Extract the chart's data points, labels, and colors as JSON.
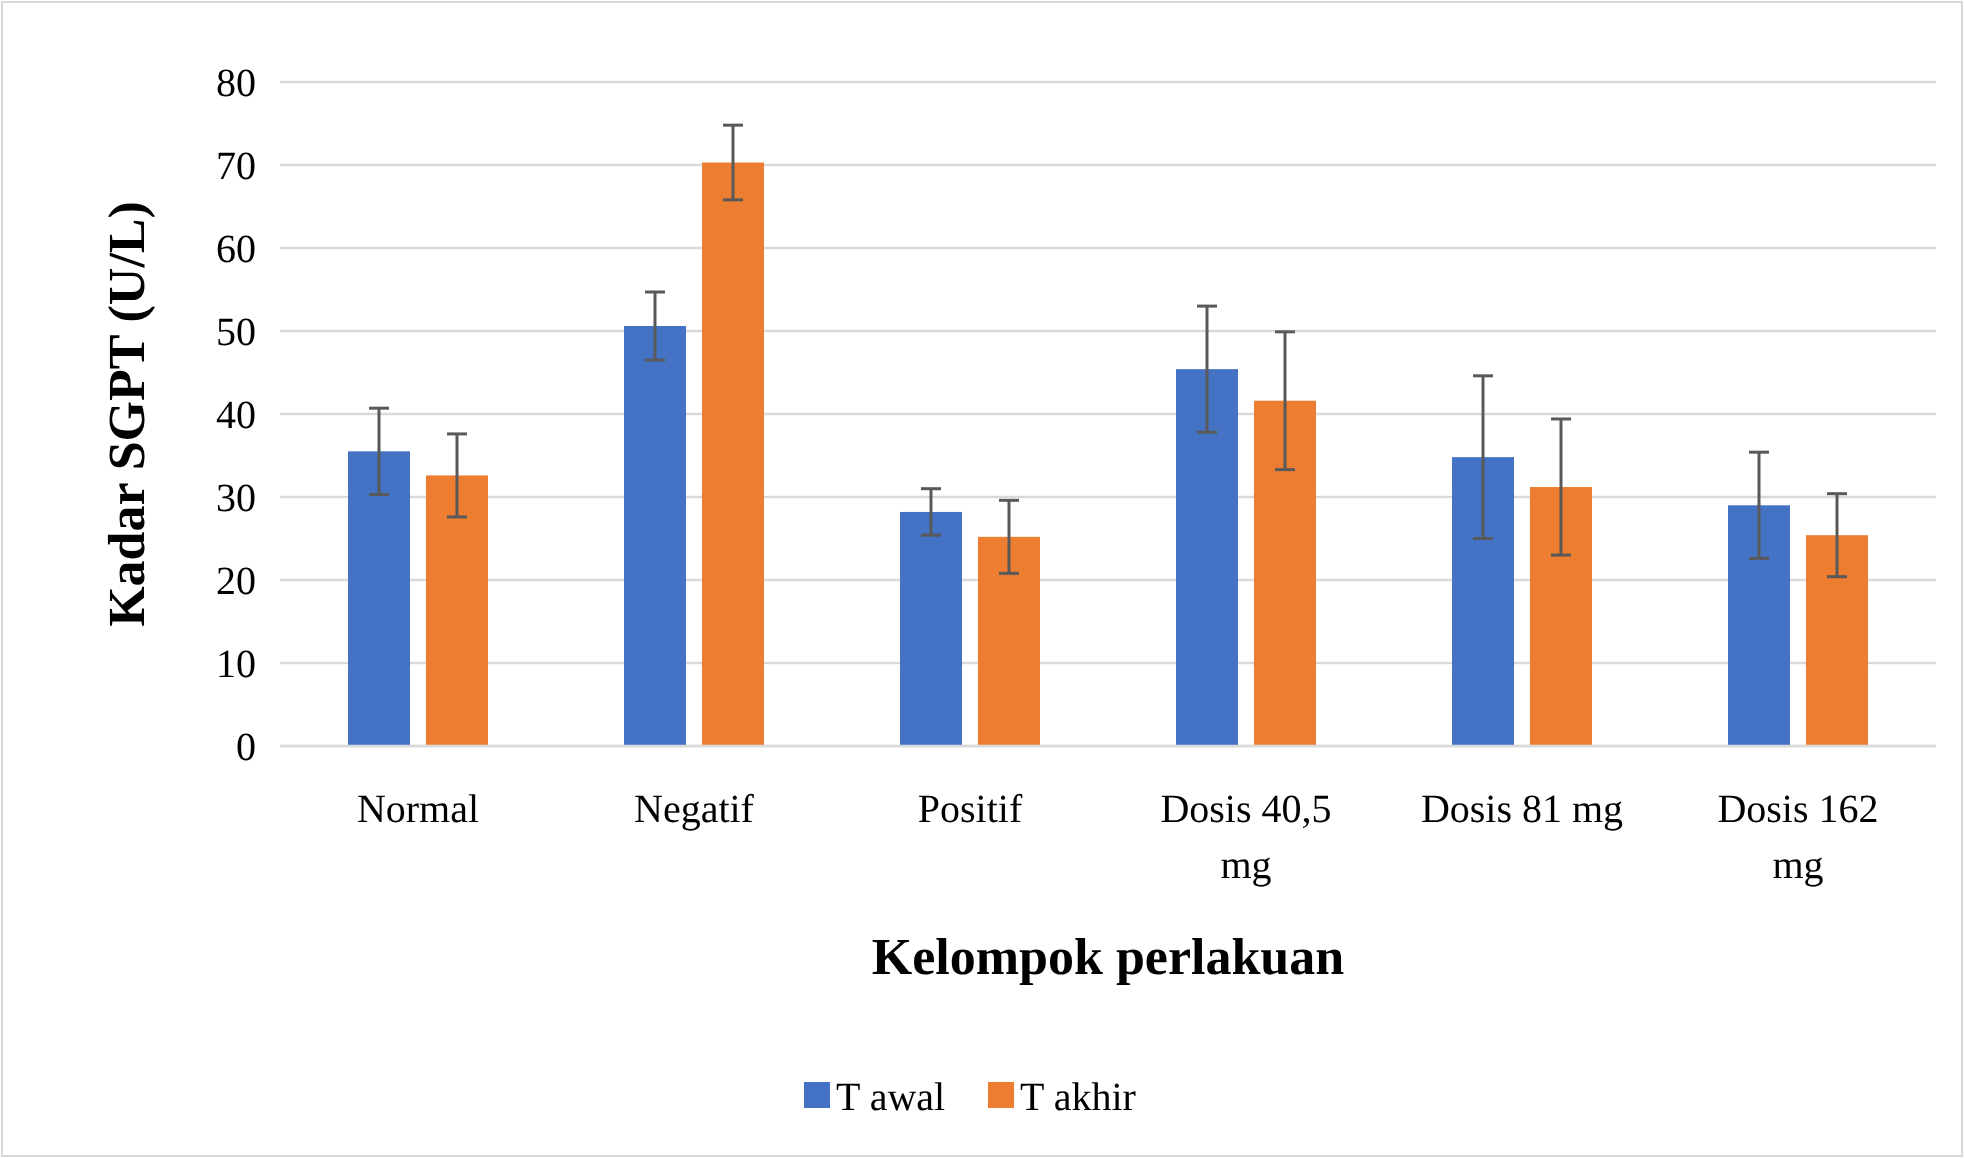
{
  "chart_data": {
    "type": "bar",
    "xlabel": "Kelompok perlakuan",
    "ylabel": "Kadar SGPT (U/L)",
    "categories": [
      "Normal",
      "Negatif",
      "Positif",
      "Dosis 40,5 mg",
      "Dosis 81 mg",
      "Dosis 162 mg"
    ],
    "series": [
      {
        "name": "T awal",
        "color": "#4472c4",
        "values": [
          35.5,
          50.6,
          28.2,
          45.4,
          34.8,
          29.0
        ],
        "errors": [
          5.2,
          4.1,
          2.8,
          7.6,
          9.8,
          6.4
        ]
      },
      {
        "name": "T akhir",
        "color": "#ed7d31",
        "values": [
          32.6,
          70.3,
          25.2,
          41.6,
          31.2,
          25.4
        ],
        "errors": [
          5.0,
          4.5,
          4.4,
          8.3,
          8.2,
          5.0
        ]
      }
    ],
    "ylim": [
      0,
      80
    ],
    "yticks": [
      0,
      10,
      20,
      30,
      40,
      50,
      60,
      70,
      80
    ],
    "grid": "y",
    "legend": "bottom"
  }
}
